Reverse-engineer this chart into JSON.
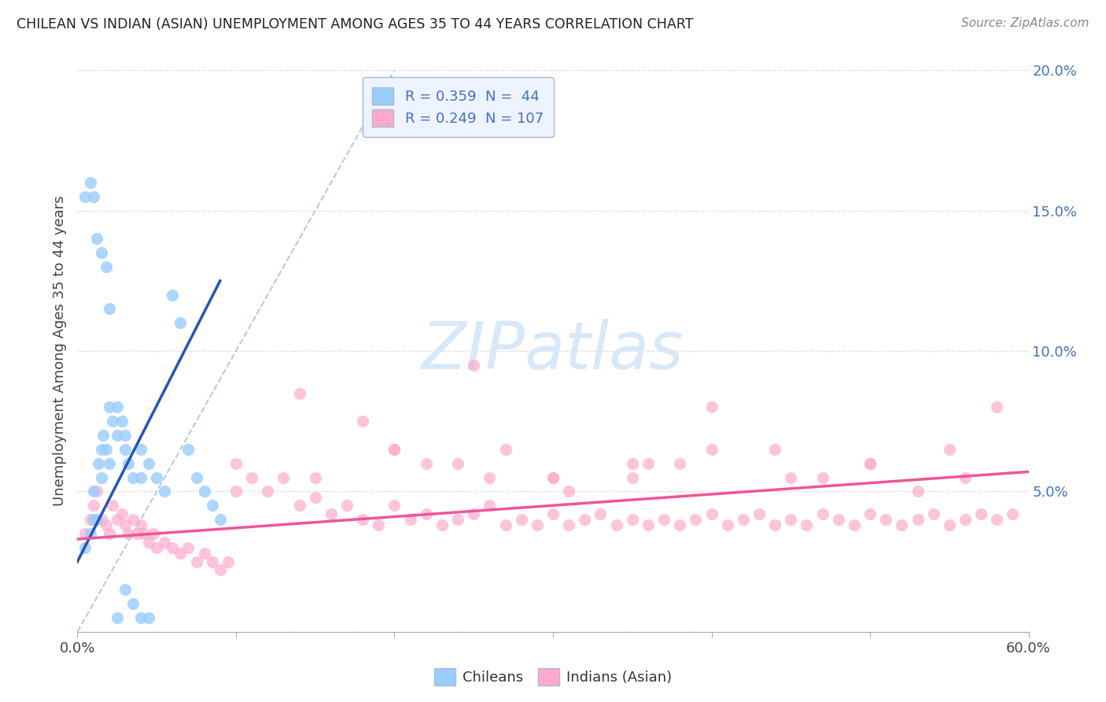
{
  "title": "CHILEAN VS INDIAN (ASIAN) UNEMPLOYMENT AMONG AGES 35 TO 44 YEARS CORRELATION CHART",
  "source": "Source: ZipAtlas.com",
  "ylabel": "Unemployment Among Ages 35 to 44 years",
  "xlim": [
    0,
    0.6
  ],
  "ylim": [
    0,
    0.2
  ],
  "ytick_color": "#4472C4",
  "chilean_color": "#99CCFF",
  "chilean_edge_color": "#6699CC",
  "indian_color": "#FFAACC",
  "indian_edge_color": "#CC6688",
  "chilean_line_color": "#2255BB",
  "indian_line_color": "#EE5599",
  "ref_line_color": "#AABBDD",
  "legend_box_color": "#EEF4FF",
  "legend_box_edge": "#AABBCC",
  "watermark_color": "#D8E8F8",
  "chilean_dots_x": [
    0.005,
    0.008,
    0.01,
    0.01,
    0.012,
    0.013,
    0.015,
    0.015,
    0.016,
    0.018,
    0.02,
    0.02,
    0.022,
    0.025,
    0.025,
    0.028,
    0.03,
    0.03,
    0.032,
    0.035,
    0.04,
    0.04,
    0.045,
    0.05,
    0.055,
    0.06,
    0.065,
    0.07,
    0.075,
    0.08,
    0.085,
    0.09,
    0.005,
    0.008,
    0.01,
    0.012,
    0.015,
    0.018,
    0.02,
    0.025,
    0.03,
    0.035,
    0.04,
    0.045
  ],
  "chilean_dots_y": [
    0.03,
    0.035,
    0.04,
    0.05,
    0.04,
    0.06,
    0.055,
    0.065,
    0.07,
    0.065,
    0.06,
    0.08,
    0.075,
    0.07,
    0.08,
    0.075,
    0.065,
    0.07,
    0.06,
    0.055,
    0.055,
    0.065,
    0.06,
    0.055,
    0.05,
    0.12,
    0.11,
    0.065,
    0.055,
    0.05,
    0.045,
    0.04,
    0.155,
    0.16,
    0.155,
    0.14,
    0.135,
    0.13,
    0.115,
    0.005,
    0.015,
    0.01,
    0.005,
    0.005
  ],
  "indian_dots_x": [
    0.005,
    0.008,
    0.01,
    0.012,
    0.015,
    0.018,
    0.02,
    0.022,
    0.025,
    0.028,
    0.03,
    0.032,
    0.035,
    0.038,
    0.04,
    0.042,
    0.045,
    0.048,
    0.05,
    0.055,
    0.06,
    0.065,
    0.07,
    0.075,
    0.08,
    0.085,
    0.09,
    0.095,
    0.1,
    0.11,
    0.12,
    0.13,
    0.14,
    0.15,
    0.16,
    0.17,
    0.18,
    0.19,
    0.2,
    0.21,
    0.22,
    0.23,
    0.24,
    0.25,
    0.26,
    0.27,
    0.28,
    0.29,
    0.3,
    0.31,
    0.32,
    0.33,
    0.34,
    0.35,
    0.36,
    0.37,
    0.38,
    0.39,
    0.4,
    0.41,
    0.42,
    0.43,
    0.44,
    0.45,
    0.46,
    0.47,
    0.48,
    0.49,
    0.5,
    0.51,
    0.52,
    0.53,
    0.54,
    0.55,
    0.56,
    0.57,
    0.58,
    0.59,
    0.14,
    0.18,
    0.25,
    0.27,
    0.31,
    0.35,
    0.38,
    0.4,
    0.44,
    0.47,
    0.5,
    0.53,
    0.56,
    0.2,
    0.24,
    0.3,
    0.36,
    0.4,
    0.45,
    0.5,
    0.55,
    0.58,
    0.1,
    0.15,
    0.2,
    0.22,
    0.26,
    0.3,
    0.35
  ],
  "indian_dots_y": [
    0.035,
    0.04,
    0.045,
    0.05,
    0.04,
    0.038,
    0.035,
    0.045,
    0.04,
    0.042,
    0.038,
    0.035,
    0.04,
    0.035,
    0.038,
    0.035,
    0.032,
    0.035,
    0.03,
    0.032,
    0.03,
    0.028,
    0.03,
    0.025,
    0.028,
    0.025,
    0.022,
    0.025,
    0.05,
    0.055,
    0.05,
    0.055,
    0.045,
    0.048,
    0.042,
    0.045,
    0.04,
    0.038,
    0.045,
    0.04,
    0.042,
    0.038,
    0.04,
    0.042,
    0.045,
    0.038,
    0.04,
    0.038,
    0.042,
    0.038,
    0.04,
    0.042,
    0.038,
    0.04,
    0.038,
    0.04,
    0.038,
    0.04,
    0.042,
    0.038,
    0.04,
    0.042,
    0.038,
    0.04,
    0.038,
    0.042,
    0.04,
    0.038,
    0.042,
    0.04,
    0.038,
    0.04,
    0.042,
    0.038,
    0.04,
    0.042,
    0.04,
    0.042,
    0.085,
    0.075,
    0.095,
    0.065,
    0.05,
    0.055,
    0.06,
    0.08,
    0.065,
    0.055,
    0.06,
    0.05,
    0.055,
    0.065,
    0.06,
    0.055,
    0.06,
    0.065,
    0.055,
    0.06,
    0.065,
    0.08,
    0.06,
    0.055,
    0.065,
    0.06,
    0.055,
    0.055,
    0.06
  ],
  "chilean_trend_x": [
    0.0,
    0.09
  ],
  "chilean_trend_y": [
    0.025,
    0.125
  ],
  "indian_trend_x": [
    0.0,
    0.6
  ],
  "indian_trend_y": [
    0.033,
    0.057
  ],
  "ref_line_x": [
    0.0,
    0.2
  ],
  "ref_line_y": [
    0.0,
    0.2
  ],
  "marker_size": 120
}
